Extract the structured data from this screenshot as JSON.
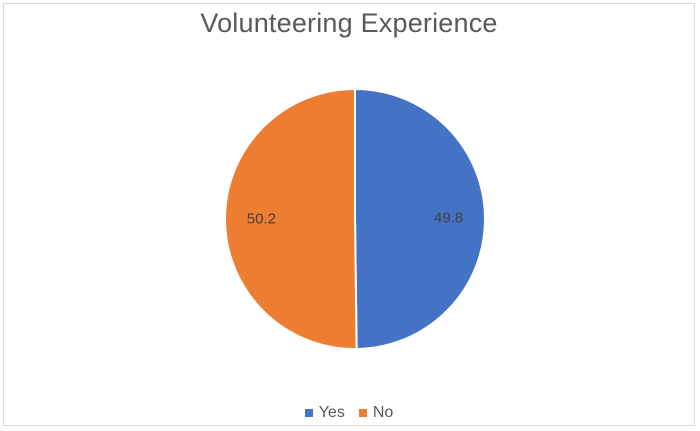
{
  "chart_data": {
    "type": "pie",
    "title": "Volunteering Experience",
    "categories": [
      "Yes",
      "No"
    ],
    "values": [
      49.8,
      50.2
    ],
    "data_labels": [
      "49.8",
      "50.2"
    ],
    "colors": [
      "#4472c4",
      "#ed7d31"
    ],
    "legend_position": "bottom",
    "start_angle": "top, clockwise"
  }
}
